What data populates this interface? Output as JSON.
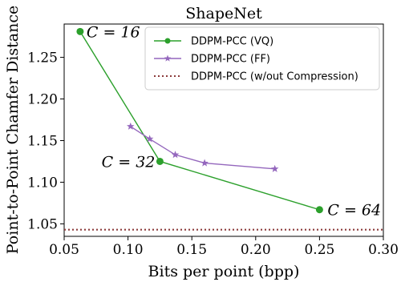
{
  "chart_data": {
    "type": "line",
    "title": "ShapeNet",
    "xlabel": "Bits per point (bpp)",
    "ylabel": "Point-to-Point Chamfer Distance",
    "xlim": [
      0.05,
      0.3
    ],
    "ylim": [
      1.035,
      1.29
    ],
    "xticks": [
      0.05,
      0.1,
      0.15,
      0.2,
      0.25,
      0.3
    ],
    "xtick_labels": [
      "0.05",
      "0.10",
      "0.15",
      "0.20",
      "0.25",
      "0.30"
    ],
    "yticks": [
      1.05,
      1.1,
      1.15,
      1.2,
      1.25
    ],
    "ytick_labels": [
      "1.05",
      "1.10",
      "1.15",
      "1.20",
      "1.25"
    ],
    "grid": false,
    "legend_position": "top-right",
    "series": [
      {
        "name": "DDPM-PCC (VQ)",
        "color": "#2ca02c",
        "marker": "circle",
        "x": [
          0.0625,
          0.125,
          0.25
        ],
        "y": [
          1.281,
          1.125,
          1.067
        ]
      },
      {
        "name": "DDPM-PCC (FF)",
        "color": "#9467bd",
        "marker": "star",
        "x": [
          0.102,
          0.117,
          0.137,
          0.16,
          0.215
        ],
        "y": [
          1.167,
          1.152,
          1.133,
          1.123,
          1.116
        ]
      },
      {
        "name": "DDPM-PCC (w/out Compression)",
        "color": "#8c3b3b",
        "marker": "none",
        "line_style": "dotted",
        "y_const": 1.043
      }
    ],
    "annotations": [
      {
        "text": "C = 16",
        "x": 0.0625,
        "y": 1.281
      },
      {
        "text": "C = 32",
        "x": 0.125,
        "y": 1.125
      },
      {
        "text": "C = 64",
        "x": 0.25,
        "y": 1.067
      }
    ]
  }
}
